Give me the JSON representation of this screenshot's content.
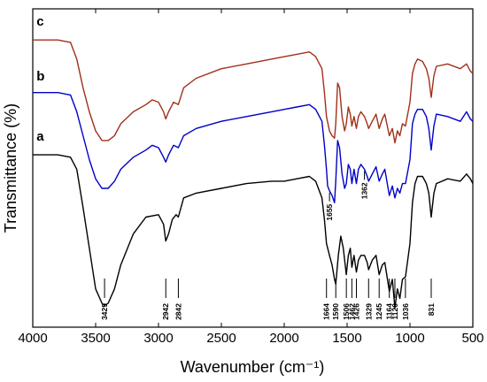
{
  "chart_data": {
    "type": "line",
    "xlabel": "Wavenumber (cm⁻¹)",
    "ylabel": "Transmittance (%)",
    "xlim": [
      4000,
      500
    ],
    "x_reversed": true,
    "x_ticks": [
      4000,
      3500,
      3000,
      2500,
      2000,
      1500,
      1000,
      500
    ],
    "y_ticks_shown": false,
    "grid": false,
    "legend": "none",
    "series": [
      {
        "name": "a",
        "color": "#000000",
        "points": [
          [
            4000,
            0.72
          ],
          [
            3800,
            0.72
          ],
          [
            3700,
            0.71
          ],
          [
            3650,
            0.66
          ],
          [
            3600,
            0.5
          ],
          [
            3550,
            0.33
          ],
          [
            3500,
            0.16
          ],
          [
            3450,
            0.1
          ],
          [
            3429,
            0.09
          ],
          [
            3400,
            0.1
          ],
          [
            3350,
            0.16
          ],
          [
            3300,
            0.26
          ],
          [
            3200,
            0.39
          ],
          [
            3100,
            0.46
          ],
          [
            3000,
            0.47
          ],
          [
            2960,
            0.43
          ],
          [
            2942,
            0.36
          ],
          [
            2920,
            0.39
          ],
          [
            2890,
            0.45
          ],
          [
            2860,
            0.47
          ],
          [
            2842,
            0.46
          ],
          [
            2800,
            0.54
          ],
          [
            2700,
            0.56
          ],
          [
            2500,
            0.58
          ],
          [
            2300,
            0.6
          ],
          [
            2100,
            0.61
          ],
          [
            2000,
            0.61
          ],
          [
            1900,
            0.62
          ],
          [
            1800,
            0.63
          ],
          [
            1750,
            0.61
          ],
          [
            1700,
            0.54
          ],
          [
            1680,
            0.45
          ],
          [
            1664,
            0.35
          ],
          [
            1640,
            0.3
          ],
          [
            1620,
            0.26
          ],
          [
            1600,
            0.2
          ],
          [
            1590,
            0.18
          ],
          [
            1570,
            0.3
          ],
          [
            1550,
            0.38
          ],
          [
            1530,
            0.33
          ],
          [
            1506,
            0.22
          ],
          [
            1490,
            0.3
          ],
          [
            1475,
            0.33
          ],
          [
            1462,
            0.25
          ],
          [
            1445,
            0.3
          ],
          [
            1426,
            0.23
          ],
          [
            1410,
            0.28
          ],
          [
            1390,
            0.3
          ],
          [
            1362,
            0.3
          ],
          [
            1340,
            0.27
          ],
          [
            1329,
            0.24
          ],
          [
            1300,
            0.28
          ],
          [
            1270,
            0.3
          ],
          [
            1245,
            0.22
          ],
          [
            1220,
            0.26
          ],
          [
            1200,
            0.27
          ],
          [
            1164,
            0.15
          ],
          [
            1140,
            0.2
          ],
          [
            1120,
            0.08
          ],
          [
            1100,
            0.16
          ],
          [
            1080,
            0.12
          ],
          [
            1060,
            0.2
          ],
          [
            1036,
            0.21
          ],
          [
            1000,
            0.35
          ],
          [
            980,
            0.52
          ],
          [
            960,
            0.6
          ],
          [
            940,
            0.63
          ],
          [
            900,
            0.63
          ],
          [
            870,
            0.6
          ],
          [
            850,
            0.56
          ],
          [
            831,
            0.46
          ],
          [
            810,
            0.56
          ],
          [
            790,
            0.6
          ],
          [
            700,
            0.62
          ],
          [
            600,
            0.61
          ],
          [
            550,
            0.64
          ],
          [
            520,
            0.62
          ],
          [
            500,
            0.6
          ]
        ]
      },
      {
        "name": "b",
        "color": "#0000c8",
        "points": [
          [
            4000,
            0.98
          ],
          [
            3800,
            0.98
          ],
          [
            3700,
            0.97
          ],
          [
            3650,
            0.9
          ],
          [
            3600,
            0.8
          ],
          [
            3550,
            0.7
          ],
          [
            3500,
            0.62
          ],
          [
            3450,
            0.58
          ],
          [
            3400,
            0.58
          ],
          [
            3350,
            0.61
          ],
          [
            3300,
            0.66
          ],
          [
            3200,
            0.71
          ],
          [
            3100,
            0.74
          ],
          [
            3050,
            0.76
          ],
          [
            3000,
            0.75
          ],
          [
            2960,
            0.71
          ],
          [
            2942,
            0.69
          ],
          [
            2920,
            0.72
          ],
          [
            2880,
            0.76
          ],
          [
            2842,
            0.75
          ],
          [
            2800,
            0.8
          ],
          [
            2700,
            0.83
          ],
          [
            2500,
            0.86
          ],
          [
            2300,
            0.88
          ],
          [
            2100,
            0.9
          ],
          [
            2000,
            0.91
          ],
          [
            1900,
            0.92
          ],
          [
            1800,
            0.93
          ],
          [
            1750,
            0.91
          ],
          [
            1700,
            0.86
          ],
          [
            1680,
            0.76
          ],
          [
            1664,
            0.66
          ],
          [
            1655,
            0.59
          ],
          [
            1640,
            0.57
          ],
          [
            1620,
            0.55
          ],
          [
            1600,
            0.52
          ],
          [
            1590,
            0.61
          ],
          [
            1575,
            0.78
          ],
          [
            1560,
            0.75
          ],
          [
            1540,
            0.64
          ],
          [
            1520,
            0.58
          ],
          [
            1506,
            0.6
          ],
          [
            1490,
            0.68
          ],
          [
            1475,
            0.66
          ],
          [
            1462,
            0.6
          ],
          [
            1445,
            0.66
          ],
          [
            1426,
            0.6
          ],
          [
            1410,
            0.66
          ],
          [
            1390,
            0.68
          ],
          [
            1362,
            0.66
          ],
          [
            1340,
            0.63
          ],
          [
            1329,
            0.61
          ],
          [
            1300,
            0.64
          ],
          [
            1270,
            0.67
          ],
          [
            1245,
            0.61
          ],
          [
            1220,
            0.64
          ],
          [
            1200,
            0.66
          ],
          [
            1164,
            0.55
          ],
          [
            1140,
            0.59
          ],
          [
            1120,
            0.54
          ],
          [
            1100,
            0.58
          ],
          [
            1080,
            0.56
          ],
          [
            1060,
            0.6
          ],
          [
            1036,
            0.6
          ],
          [
            1000,
            0.7
          ],
          [
            980,
            0.85
          ],
          [
            960,
            0.89
          ],
          [
            940,
            0.91
          ],
          [
            900,
            0.91
          ],
          [
            870,
            0.88
          ],
          [
            850,
            0.83
          ],
          [
            831,
            0.74
          ],
          [
            810,
            0.84
          ],
          [
            790,
            0.89
          ],
          [
            700,
            0.88
          ],
          [
            600,
            0.86
          ],
          [
            550,
            0.9
          ],
          [
            520,
            0.87
          ],
          [
            500,
            0.86
          ]
        ]
      },
      {
        "name": "c",
        "color": "#a0301a",
        "points": [
          [
            4000,
            1.2
          ],
          [
            3800,
            1.2
          ],
          [
            3700,
            1.19
          ],
          [
            3650,
            1.12
          ],
          [
            3600,
            1.0
          ],
          [
            3550,
            0.9
          ],
          [
            3500,
            0.82
          ],
          [
            3450,
            0.78
          ],
          [
            3400,
            0.78
          ],
          [
            3350,
            0.8
          ],
          [
            3300,
            0.85
          ],
          [
            3200,
            0.9
          ],
          [
            3100,
            0.93
          ],
          [
            3050,
            0.95
          ],
          [
            3000,
            0.94
          ],
          [
            2960,
            0.9
          ],
          [
            2942,
            0.87
          ],
          [
            2920,
            0.9
          ],
          [
            2880,
            0.94
          ],
          [
            2842,
            0.93
          ],
          [
            2800,
            1.0
          ],
          [
            2700,
            1.04
          ],
          [
            2500,
            1.08
          ],
          [
            2300,
            1.1
          ],
          [
            2100,
            1.12
          ],
          [
            2000,
            1.13
          ],
          [
            1900,
            1.14
          ],
          [
            1800,
            1.15
          ],
          [
            1750,
            1.13
          ],
          [
            1700,
            1.08
          ],
          [
            1680,
            0.98
          ],
          [
            1664,
            0.88
          ],
          [
            1640,
            0.82
          ],
          [
            1620,
            0.8
          ],
          [
            1600,
            0.79
          ],
          [
            1590,
            0.85
          ],
          [
            1575,
            1.02
          ],
          [
            1560,
            1.0
          ],
          [
            1540,
            0.88
          ],
          [
            1520,
            0.82
          ],
          [
            1506,
            0.85
          ],
          [
            1490,
            0.92
          ],
          [
            1475,
            0.89
          ],
          [
            1462,
            0.84
          ],
          [
            1445,
            0.88
          ],
          [
            1426,
            0.83
          ],
          [
            1410,
            0.88
          ],
          [
            1390,
            0.9
          ],
          [
            1362,
            0.88
          ],
          [
            1340,
            0.85
          ],
          [
            1329,
            0.83
          ],
          [
            1300,
            0.86
          ],
          [
            1270,
            0.89
          ],
          [
            1245,
            0.83
          ],
          [
            1220,
            0.87
          ],
          [
            1200,
            0.89
          ],
          [
            1164,
            0.8
          ],
          [
            1140,
            0.83
          ],
          [
            1120,
            0.77
          ],
          [
            1100,
            0.82
          ],
          [
            1080,
            0.8
          ],
          [
            1060,
            0.85
          ],
          [
            1036,
            0.84
          ],
          [
            1000,
            0.94
          ],
          [
            980,
            1.06
          ],
          [
            960,
            1.1
          ],
          [
            940,
            1.12
          ],
          [
            900,
            1.11
          ],
          [
            870,
            1.08
          ],
          [
            850,
            1.04
          ],
          [
            831,
            0.96
          ],
          [
            810,
            1.05
          ],
          [
            790,
            1.09
          ],
          [
            700,
            1.1
          ],
          [
            600,
            1.08
          ],
          [
            550,
            1.1
          ],
          [
            520,
            1.07
          ],
          [
            500,
            1.06
          ]
        ]
      }
    ],
    "series_labels": [
      {
        "text": "a",
        "x": 3900,
        "y": 0.78
      },
      {
        "text": "b",
        "x": 3900,
        "y": 1.03
      },
      {
        "text": "c",
        "x": 3900,
        "y": 1.26
      }
    ],
    "peak_annotations": [
      {
        "text": "3429",
        "x": 3429,
        "series": "a"
      },
      {
        "text": "2942",
        "x": 2942,
        "series": "a"
      },
      {
        "text": "2842",
        "x": 2842,
        "series": "a"
      },
      {
        "text": "1664",
        "x": 1664,
        "series": "a"
      },
      {
        "text": "1590",
        "x": 1590,
        "series": "a"
      },
      {
        "text": "1506",
        "x": 1506,
        "series": "a"
      },
      {
        "text": "1462",
        "x": 1462,
        "series": "a"
      },
      {
        "text": "1426",
        "x": 1426,
        "series": "a"
      },
      {
        "text": "1329",
        "x": 1329,
        "series": "a"
      },
      {
        "text": "1245",
        "x": 1245,
        "series": "a"
      },
      {
        "text": "1164",
        "x": 1164,
        "series": "a"
      },
      {
        "text": "1120",
        "x": 1120,
        "series": "a"
      },
      {
        "text": "1036",
        "x": 1036,
        "series": "a"
      },
      {
        "text": "831",
        "x": 831,
        "series": "a"
      },
      {
        "text": "1655",
        "x": 1640,
        "series": "b"
      },
      {
        "text": "1362",
        "x": 1362,
        "series": "b"
      }
    ]
  }
}
